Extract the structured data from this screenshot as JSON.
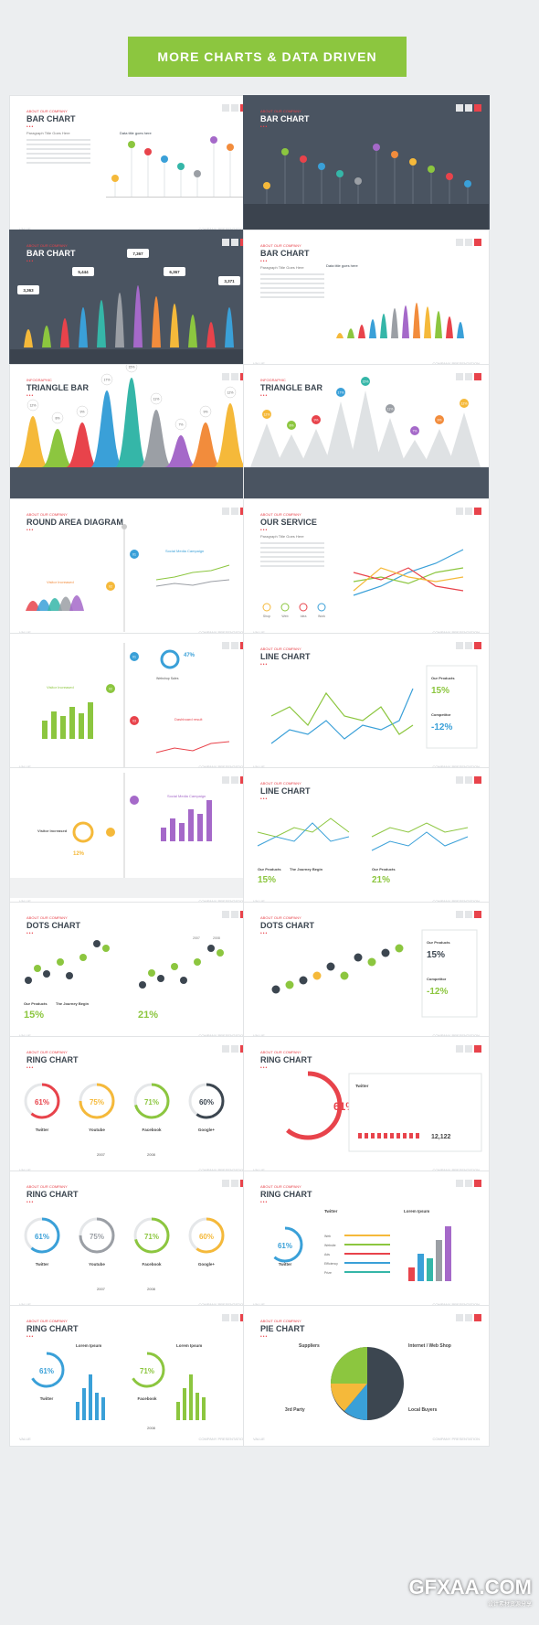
{
  "banner": "MORE CHARTS & DATA DRIVEN",
  "common": {
    "about": "ABOUT OUR COMPANY",
    "infographic": "INFOGRAPHIC",
    "value": "VALUE",
    "presentation": "COMPANY PRESENTATION",
    "paragraph_title": "Paragraph Title Goes Here",
    "data_title": "Data title goes here"
  },
  "slides": [
    {
      "title": "BAR CHART",
      "sub": "ABOUT OUR COMPANY"
    },
    {
      "title": "BAR CHART",
      "sub": "ABOUT OUR COMPANY"
    },
    {
      "title": "BAR CHART",
      "sub": "ABOUT OUR COMPANY"
    },
    {
      "title": "BAR CHART",
      "sub": "ABOUT OUR COMPANY"
    },
    {
      "title": "TRIANGLE BAR",
      "sub": "INFOGRAPHIC"
    },
    {
      "title": "TRIANGLE BAR",
      "sub": "INFOGRAPHIC"
    },
    {
      "title": "ROUND AREA DIAGRAM",
      "sub": "ABOUT OUR COMPANY"
    },
    {
      "title": "OUR SERVICE",
      "sub": "ABOUT OUR COMPANY"
    },
    {
      "title": "",
      "sub": ""
    },
    {
      "title": "LINE CHART",
      "sub": "ABOUT OUR COMPANY"
    },
    {
      "title": "",
      "sub": ""
    },
    {
      "title": "LINE CHART",
      "sub": "ABOUT OUR COMPANY"
    },
    {
      "title": "DOTS CHART",
      "sub": "ABOUT OUR COMPANY"
    },
    {
      "title": "DOTS CHART",
      "sub": "ABOUT OUR COMPANY"
    },
    {
      "title": "RING CHART",
      "sub": "ABOUT OUR COMPANY"
    },
    {
      "title": "RING CHART",
      "sub": "ABOUT OUR COMPANY"
    },
    {
      "title": "RING CHART",
      "sub": "ABOUT OUR COMPANY"
    },
    {
      "title": "RING CHART",
      "sub": "ABOUT OUR COMPANY"
    },
    {
      "title": "RING CHART",
      "sub": "ABOUT OUR COMPANY"
    },
    {
      "title": "PIE CHART",
      "sub": "ABOUT OUR COMPANY"
    }
  ],
  "bar3_labels": [
    "3,363",
    "5,444",
    "7,367",
    "6,367",
    "3,371"
  ],
  "tri_pcts": [
    "12%",
    "8%",
    "9%",
    "17%",
    "15%",
    "11%",
    "7%",
    "9%",
    "12%"
  ],
  "round": {
    "social": "Social Media Campaign",
    "visitor": "Visitor Increased",
    "steps": [
      "01",
      "02"
    ]
  },
  "service_icons": [
    "Shop",
    "Web",
    "Idea",
    "Work"
  ],
  "slide9": {
    "pct": "47%",
    "web": "Webshop Sales",
    "visitor": "Visitor Increased",
    "dash": "Dashboard result",
    "steps": [
      "01",
      "02",
      "03"
    ]
  },
  "line_right": {
    "products": "Our Products",
    "p_val": "15%",
    "competitor": "Competitor",
    "c_val": "-12%"
  },
  "slide11": {
    "social": "Social Media Campaign",
    "visitor": "Visitor Increased",
    "pct": "12%"
  },
  "line2": {
    "products": "Our Products",
    "p_val": "15%",
    "journey": "The Journey Begin",
    "p2": "21%"
  },
  "dots1": {
    "products": "Our Products",
    "p_val": "15%",
    "journey": "The Journey Begin",
    "p2": "21%",
    "legend": [
      "2007",
      "2008"
    ]
  },
  "dots2": {
    "products": "Our Products",
    "p_val": "15%",
    "competitor": "Competitor",
    "c_val": "-12%"
  },
  "ring1": {
    "items": [
      {
        "v": "61",
        "l": "Twitter"
      },
      {
        "v": "75",
        "l": "Youtube"
      },
      {
        "v": "71",
        "l": "Facebook"
      },
      {
        "v": "60",
        "l": "Google+"
      }
    ],
    "legend": [
      "2007",
      "2008"
    ]
  },
  "ring2": {
    "v": "61",
    "twitter": "Twitter",
    "count": "12,122"
  },
  "ring3": {
    "items": [
      {
        "v": "61",
        "l": "Twitter"
      },
      {
        "v": "75",
        "l": "Youtube"
      },
      {
        "v": "71",
        "l": "Facebook"
      },
      {
        "v": "60",
        "l": "Google+"
      }
    ],
    "legend": [
      "2007",
      "2008"
    ],
    "unit": "monthly"
  },
  "ring4": {
    "v": "61",
    "twitter": "Twitter",
    "lorem": "Lorem Ipsum",
    "rows": [
      "Web",
      "Website",
      "Ads",
      "Efficiency",
      "Prize"
    ]
  },
  "ring5": {
    "a": "61",
    "b": "71",
    "lorem": "Lorem Ipsum",
    "twitter": "Twitter",
    "facebook": "Facebook",
    "legend": "2008"
  },
  "pie": {
    "suppliers": "Suppliers",
    "internet": "Internet / Web Shop",
    "third": "3rd Party",
    "local": "Local Buyers"
  },
  "logo": {
    "main": "GFXAA.COM",
    "small": "设计素材资源分享"
  }
}
